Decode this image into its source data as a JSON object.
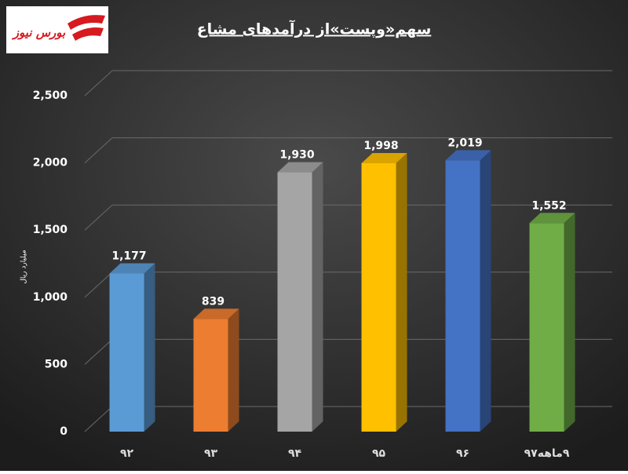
{
  "logo": "بورس نیوز",
  "chart_data": {
    "type": "bar3d",
    "title": "سهم«وپست»از درآمدهای مشاع",
    "y_label": "میلیارد ریال",
    "categories": [
      "۹۲",
      "۹۳",
      "۹۴",
      "۹۵",
      "۹۶",
      "۹ماهه۹۷"
    ],
    "values": [
      1177,
      839,
      1930,
      1998,
      2019,
      1552
    ],
    "value_labels": [
      "1,177",
      "839",
      "1,930",
      "1,998",
      "2,019",
      "1,552"
    ],
    "colors": [
      "#5b9bd5",
      "#ed7d31",
      "#a5a5a5",
      "#ffc000",
      "#4472c4",
      "#70ad47"
    ],
    "ylim": [
      0,
      2500
    ],
    "yticks": [
      0,
      500,
      {
        "value": 1000,
        "label": "1,000"
      },
      {
        "value": 1500,
        "label": "1,500"
      },
      {
        "value": 2000,
        "label": "2,000"
      },
      {
        "value": 2500,
        "label": "2,500"
      }
    ],
    "grid": true
  }
}
